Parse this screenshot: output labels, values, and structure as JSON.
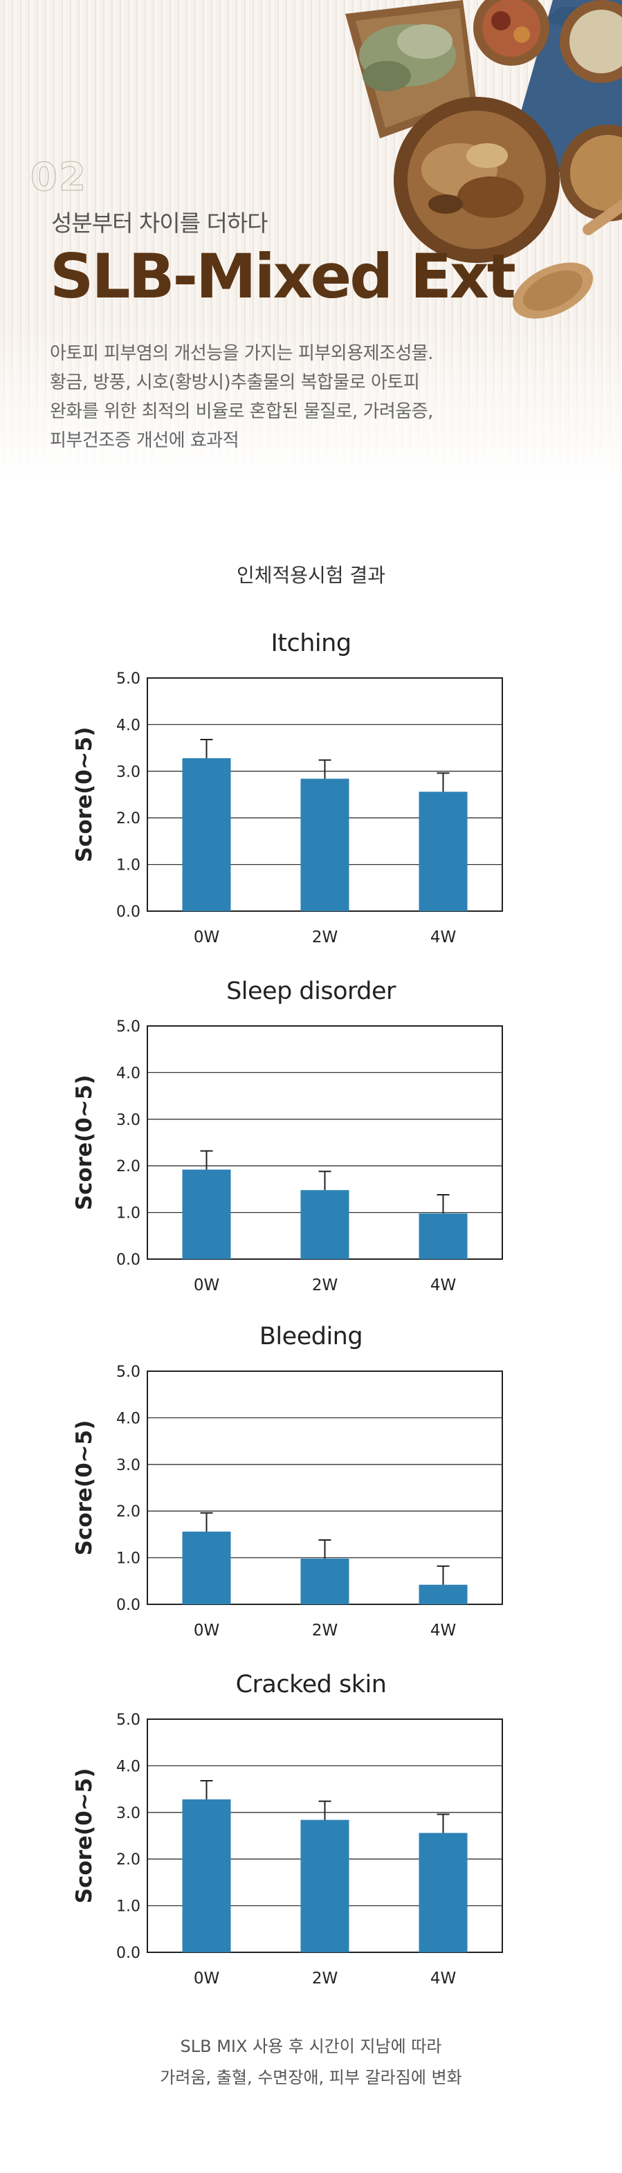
{
  "hero": {
    "number": "02",
    "subtitle": "성분부터 차이를 더하다",
    "title": "SLB-Mixed Ext",
    "description": [
      "아토피 피부염의 개선능을 가지는 피부외용제조성물.",
      "황금, 방풍, 시호(황방시)추출물의 복합물로 아토피",
      "완화를 위한 최적의 비율로 혼합된 물질로, 가려움증,",
      "피부건조증 개선에 효과적"
    ]
  },
  "section_title": "인체적용시험 결과",
  "chart_data": [
    {
      "type": "bar",
      "title": "Itching",
      "ylabel": "Score(0~5)",
      "categories": [
        "0W",
        "2W",
        "4W"
      ],
      "values": [
        3.28,
        2.84,
        2.56
      ],
      "error": [
        0.4,
        0.4,
        0.4
      ],
      "ylim": [
        0,
        5
      ],
      "yticks": [
        "0.0",
        "1.0",
        "2.0",
        "3.0",
        "4.0",
        "5.0"
      ],
      "grid": true,
      "color": "#2d82b5"
    },
    {
      "type": "bar",
      "title": "Sleep disorder",
      "ylabel": "Score(0~5)",
      "categories": [
        "0W",
        "2W",
        "4W"
      ],
      "values": [
        1.92,
        1.48,
        0.98
      ],
      "error": [
        0.4,
        0.4,
        0.4
      ],
      "ylim": [
        0,
        5
      ],
      "yticks": [
        "0.0",
        "1.0",
        "2.0",
        "3.0",
        "4.0",
        "5.0"
      ],
      "grid": true,
      "color": "#2d82b5"
    },
    {
      "type": "bar",
      "title": "Bleeding",
      "ylabel": "Score(0~5)",
      "categories": [
        "0W",
        "2W",
        "4W"
      ],
      "values": [
        1.56,
        0.98,
        0.42
      ],
      "error": [
        0.4,
        0.4,
        0.4
      ],
      "ylim": [
        0,
        5
      ],
      "yticks": [
        "0.0",
        "1.0",
        "2.0",
        "3.0",
        "4.0",
        "5.0"
      ],
      "grid": true,
      "color": "#2d82b5"
    },
    {
      "type": "bar",
      "title": "Cracked skin",
      "ylabel": "Score(0~5)",
      "categories": [
        "0W",
        "2W",
        "4W"
      ],
      "values": [
        3.28,
        2.84,
        2.56
      ],
      "error": [
        0.4,
        0.4,
        0.4
      ],
      "ylim": [
        0,
        5
      ],
      "yticks": [
        "0.0",
        "1.0",
        "2.0",
        "3.0",
        "4.0",
        "5.0"
      ],
      "grid": true,
      "color": "#2d82b5"
    }
  ],
  "caption": [
    "SLB MIX 사용 후 시간이 지남에 따라",
    "가려움, 출혈, 수면장애, 피부 갈라짐에 변화"
  ]
}
